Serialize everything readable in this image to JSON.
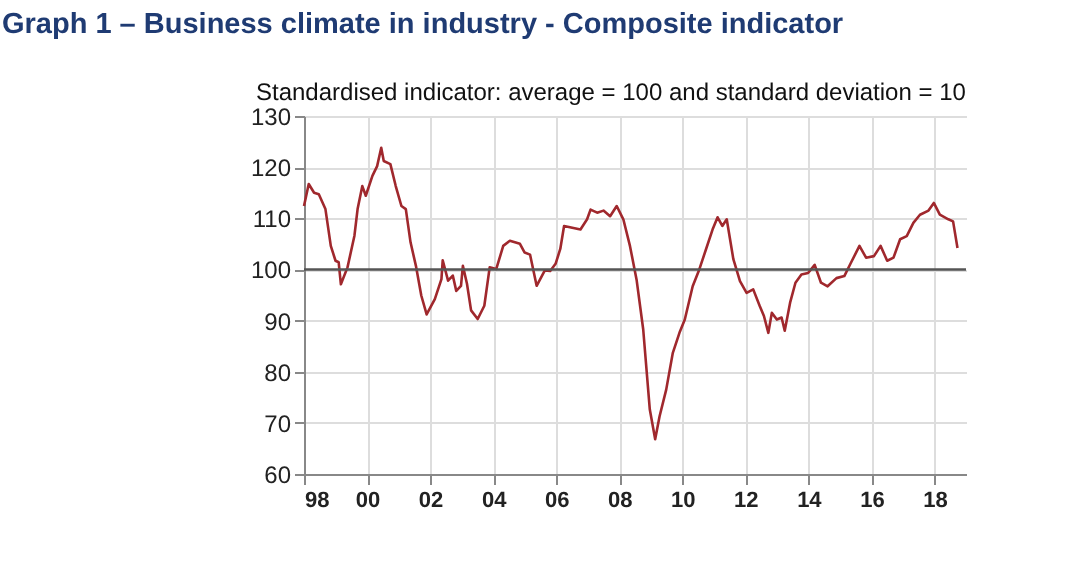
{
  "chart_data": {
    "type": "line",
    "title": "Graph 1 – Business climate in industry - Composite indicator",
    "subtitle": "Standardised indicator: average = 100 and standard deviation = 10",
    "x": [
      1998.0,
      1998.15,
      1998.32,
      1998.47,
      1998.68,
      1998.85,
      1999.0,
      1999.1,
      1999.17,
      1999.38,
      1999.6,
      1999.7,
      1999.85,
      1999.96,
      2000.17,
      2000.32,
      2000.45,
      2000.53,
      2000.74,
      2000.91,
      2001.09,
      2001.23,
      2001.38,
      2001.55,
      2001.72,
      2001.89,
      2002.15,
      2002.36,
      2002.4,
      2002.57,
      2002.72,
      2002.83,
      2002.98,
      2003.04,
      2003.17,
      2003.3,
      2003.51,
      2003.72,
      2003.89,
      2004.1,
      2004.32,
      2004.53,
      2004.85,
      2005.0,
      2005.17,
      2005.38,
      2005.64,
      2005.81,
      2005.98,
      2006.13,
      2006.25,
      2006.77,
      2006.98,
      2007.09,
      2007.3,
      2007.5,
      2007.71,
      2007.92,
      2008.13,
      2008.34,
      2008.55,
      2008.76,
      2008.97,
      2009.14,
      2009.28,
      2009.49,
      2009.7,
      2009.91,
      2010.08,
      2010.33,
      2010.54,
      2010.75,
      2010.96,
      2011.12,
      2011.27,
      2011.41,
      2011.62,
      2011.83,
      2012.04,
      2012.25,
      2012.46,
      2012.59,
      2012.73,
      2012.84,
      2013.0,
      2013.15,
      2013.25,
      2013.42,
      2013.59,
      2013.78,
      2013.99,
      2014.2,
      2014.4,
      2014.61,
      2014.89,
      2015.14,
      2015.35,
      2015.62,
      2015.83,
      2016.08,
      2016.29,
      2016.5,
      2016.7,
      2016.91,
      2017.12,
      2017.33,
      2017.54,
      2017.81,
      2017.98,
      2018.17,
      2018.44,
      2018.59,
      2018.73
    ],
    "series": [
      {
        "color": "#a0282d",
        "values": [
          112.4,
          116.7,
          115.0,
          114.7,
          111.8,
          104.6,
          101.7,
          101.4,
          97.1,
          100.4,
          106.6,
          111.8,
          116.3,
          114.4,
          118.3,
          120.2,
          123.8,
          121.2,
          120.6,
          116.3,
          112.4,
          111.8,
          105.3,
          100.7,
          94.9,
          91.2,
          94.2,
          98.1,
          101.8,
          97.8,
          98.8,
          95.8,
          96.8,
          100.7,
          97.2,
          92.0,
          90.3,
          92.9,
          100.4,
          100.1,
          104.6,
          105.6,
          105.0,
          103.3,
          102.9,
          96.8,
          99.8,
          99.7,
          101.1,
          104.0,
          108.5,
          107.8,
          109.8,
          111.7,
          111.1,
          111.5,
          110.4,
          112.4,
          109.8,
          104.6,
          98.0,
          88.3,
          72.6,
          66.8,
          71.3,
          76.5,
          83.7,
          87.6,
          90.2,
          96.7,
          100.0,
          103.9,
          107.8,
          110.2,
          108.5,
          109.8,
          102.0,
          97.7,
          95.4,
          96.1,
          92.8,
          90.9,
          87.6,
          91.5,
          90.2,
          90.6,
          88.0,
          93.5,
          97.4,
          99.0,
          99.3,
          100.9,
          97.4,
          96.7,
          98.3,
          98.7,
          101.3,
          104.6,
          102.3,
          102.6,
          104.6,
          101.7,
          102.3,
          105.9,
          106.5,
          109.1,
          110.7,
          111.5,
          113.0,
          110.7,
          109.8,
          109.4,
          104.2
        ]
      }
    ],
    "xlim": [
      1998,
      2019
    ],
    "xticks": [
      {
        "value": 1998,
        "label": "98"
      },
      {
        "value": 2000,
        "label": "00"
      },
      {
        "value": 2002,
        "label": "02"
      },
      {
        "value": 2004,
        "label": "04"
      },
      {
        "value": 2006,
        "label": "06"
      },
      {
        "value": 2008,
        "label": "08"
      },
      {
        "value": 2010,
        "label": "10"
      },
      {
        "value": 2012,
        "label": "12"
      },
      {
        "value": 2014,
        "label": "14"
      },
      {
        "value": 2016,
        "label": "16"
      },
      {
        "value": 2018,
        "label": "18"
      }
    ],
    "ylim": [
      60,
      130
    ],
    "yticks": [
      60,
      70,
      80,
      90,
      100,
      110,
      120,
      130
    ],
    "ref_lines": [
      {
        "axis": "y",
        "value": 100,
        "color": "#555555"
      }
    ],
    "grid": true,
    "legend": false,
    "marker": "none",
    "line_style": "solid"
  }
}
